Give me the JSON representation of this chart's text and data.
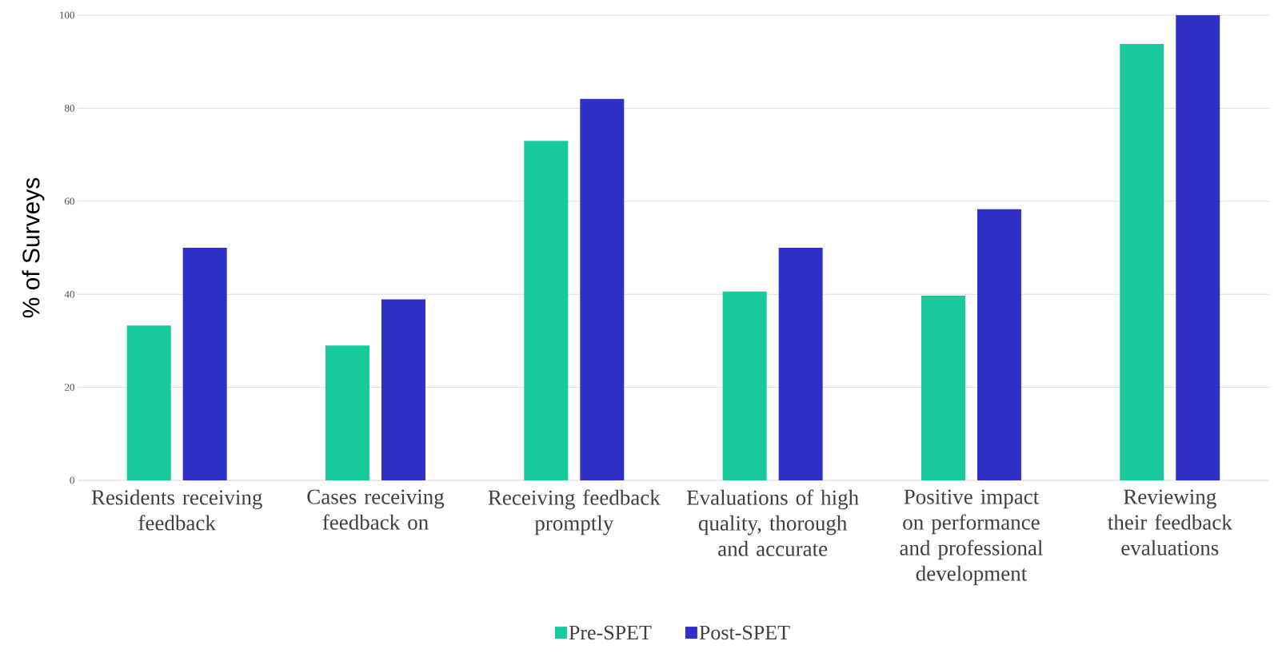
{
  "chart_data": {
    "type": "bar",
    "ylabel": "% of Surveys",
    "categories": [
      "Residents receiving feedback",
      "Cases receiving feedback on",
      "Receiving feedback promptly",
      "Evaluations of high quality, thorough and accurate",
      "Positive impact on performance and professional development",
      "Reviewing their feedback evaluations"
    ],
    "series": [
      {
        "name": "Pre-SPET",
        "color": "#19c99b",
        "values": [
          33.3,
          29,
          73,
          40.6,
          39.7,
          93.8
        ]
      },
      {
        "name": "Post-SPET",
        "color": "#3030c8",
        "values": [
          50,
          38.9,
          82,
          50,
          58.3,
          100
        ]
      }
    ],
    "ylim": [
      0,
      100
    ],
    "yticks": [
      0,
      20,
      40,
      60,
      80,
      100
    ],
    "grid": "y",
    "legend": "bottom"
  }
}
